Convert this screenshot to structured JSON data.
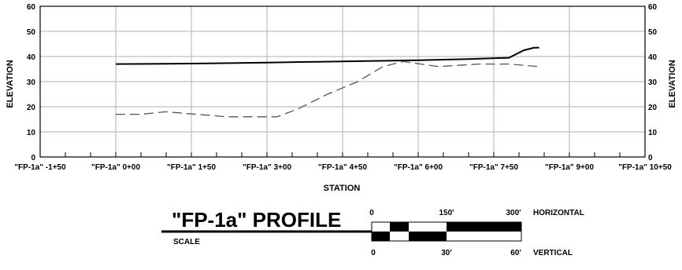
{
  "chart_data": {
    "type": "line",
    "xlabel": "STATION",
    "ylabel": "ELEVATION",
    "ylim": [
      0,
      60
    ],
    "yticks": [
      0,
      10,
      20,
      30,
      40,
      50,
      60
    ],
    "xlim": [
      -150,
      1050
    ],
    "xticks": [
      -150,
      0,
      150,
      300,
      450,
      600,
      750,
      900,
      1050
    ],
    "xtick_labels": [
      "\"FP-1a\" -1+50",
      "\"FP-1a\" 0+00",
      "\"FP-1a\" 1+50",
      "\"FP-1a\" 3+00",
      "\"FP-1a\" 4+50",
      "\"FP-1a\" 6+00",
      "\"FP-1a\" 7+50",
      "\"FP-1a\" 9+00",
      "\"FP-1a\" 10+50"
    ],
    "grid": true,
    "series": [
      {
        "style": "solid",
        "color": "#000000",
        "points": [
          [
            0,
            37
          ],
          [
            100,
            37.1
          ],
          [
            200,
            37.3
          ],
          [
            300,
            37.6
          ],
          [
            400,
            37.9
          ],
          [
            500,
            38.2
          ],
          [
            600,
            38.5
          ],
          [
            700,
            39
          ],
          [
            780,
            39.5
          ],
          [
            810,
            42.5
          ],
          [
            830,
            43.5
          ],
          [
            840,
            43.5
          ]
        ]
      },
      {
        "style": "dashed",
        "color": "#555555",
        "points": [
          [
            0,
            17
          ],
          [
            50,
            17
          ],
          [
            100,
            18
          ],
          [
            160,
            17
          ],
          [
            220,
            16
          ],
          [
            320,
            16
          ],
          [
            360,
            19
          ],
          [
            420,
            25
          ],
          [
            480,
            30
          ],
          [
            530,
            36
          ],
          [
            570,
            38
          ],
          [
            640,
            36
          ],
          [
            720,
            37
          ],
          [
            780,
            37
          ],
          [
            840,
            36
          ]
        ]
      }
    ]
  },
  "title_block": {
    "title": "\"FP-1a\" PROFILE",
    "scale_label": "SCALE",
    "horizontal": {
      "start": "0",
      "mid": "150'",
      "end": "300'",
      "label": "HORIZONTAL"
    },
    "vertical": {
      "start": "0",
      "mid": "30'",
      "end": "60'",
      "label": "VERTICAL"
    }
  }
}
